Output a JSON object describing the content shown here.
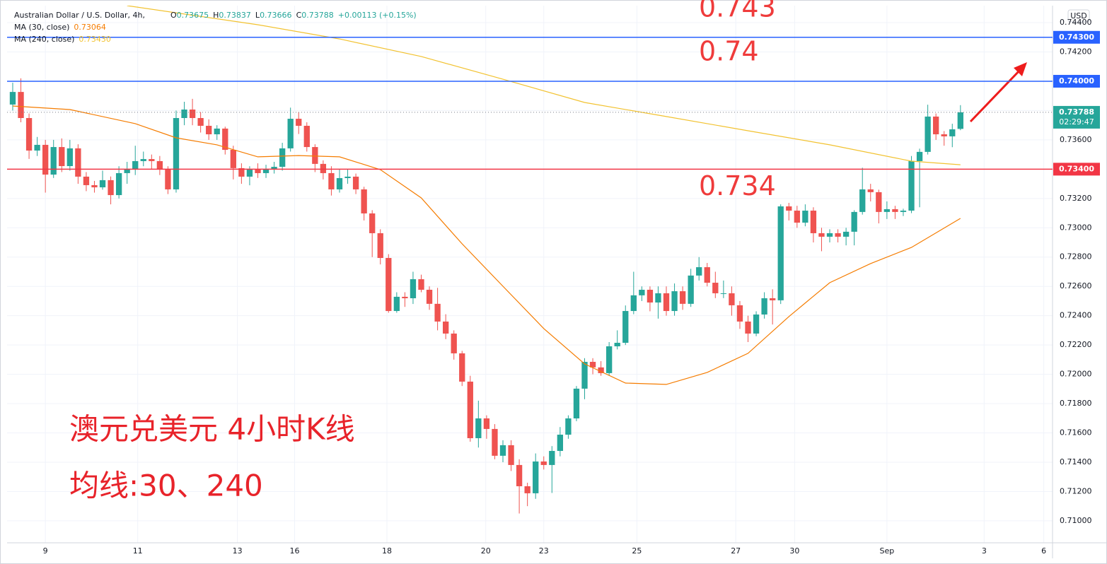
{
  "chart_data": {
    "type": "candlestick",
    "header": {
      "symbol": "Australian Dollar / U.S. Dollar, 4h,",
      "o": "O",
      "h": "H",
      "l": "L",
      "c": "C",
      "change": "+0.00113 (+0.15%)"
    },
    "currency": "USD",
    "up_color": "#26a69a",
    "down_color": "#ef5350",
    "xlim": [
      -0.69,
      127.27
    ],
    "ylim": [
      0.7085,
      0.74516
    ],
    "grid": true,
    "xticks": [
      {
        "value": 4,
        "label": "9"
      },
      {
        "value": 15.3,
        "label": "11"
      },
      {
        "value": 27.5,
        "label": "13"
      },
      {
        "value": 34.5,
        "label": "16"
      },
      {
        "value": 45.8,
        "label": "18"
      },
      {
        "value": 57.9,
        "label": "20"
      },
      {
        "value": 65,
        "label": "23"
      },
      {
        "value": 76.4,
        "label": "25"
      },
      {
        "value": 88.5,
        "label": "27"
      },
      {
        "value": 95.7,
        "label": "30"
      },
      {
        "value": 107,
        "label": "Sep"
      },
      {
        "value": 118.9,
        "label": "3"
      },
      {
        "value": 126.2,
        "label": "6"
      }
    ],
    "yticks": [
      {
        "value": 0.71,
        "label": "0.71000"
      },
      {
        "value": 0.712,
        "label": "0.71200"
      },
      {
        "value": 0.714,
        "label": "0.71400"
      },
      {
        "value": 0.716,
        "label": "0.71600"
      },
      {
        "value": 0.718,
        "label": "0.71800"
      },
      {
        "value": 0.72,
        "label": "0.72000"
      },
      {
        "value": 0.722,
        "label": "0.72200"
      },
      {
        "value": 0.724,
        "label": "0.72400"
      },
      {
        "value": 0.726,
        "label": "0.72600"
      },
      {
        "value": 0.728,
        "label": "0.72800"
      },
      {
        "value": 0.73,
        "label": "0.73000"
      },
      {
        "value": 0.732,
        "label": "0.73200"
      },
      {
        "value": 0.734,
        "label": "0.73400"
      },
      {
        "value": 0.736,
        "label": "0.73600"
      },
      {
        "value": 0.738,
        "label": "0.73800"
      },
      {
        "value": 0.74,
        "label": "0.74000"
      },
      {
        "value": 0.742,
        "label": "0.74200"
      },
      {
        "value": 0.744,
        "label": "0.74400"
      }
    ],
    "ohlc": [
      [
        0.73841,
        0.7399,
        0.738,
        0.73927
      ],
      [
        0.73927,
        0.7402,
        0.7372,
        0.73749
      ],
      [
        0.73749,
        0.7378,
        0.7347,
        0.73527
      ],
      [
        0.73527,
        0.7362,
        0.7349,
        0.73566
      ],
      [
        0.73566,
        0.736,
        0.7324,
        0.73363
      ],
      [
        0.73363,
        0.736,
        0.7334,
        0.73551
      ],
      [
        0.73551,
        0.7361,
        0.7338,
        0.73421
      ],
      [
        0.73421,
        0.736,
        0.7339,
        0.73542
      ],
      [
        0.73542,
        0.7357,
        0.733,
        0.73349
      ],
      [
        0.73349,
        0.7338,
        0.7325,
        0.73291
      ],
      [
        0.73291,
        0.7332,
        0.7324,
        0.73276
      ],
      [
        0.73276,
        0.7339,
        0.7326,
        0.73325
      ],
      [
        0.73325,
        0.7335,
        0.7316,
        0.73223
      ],
      [
        0.73223,
        0.7342,
        0.732,
        0.73373
      ],
      [
        0.73373,
        0.7345,
        0.733,
        0.73397
      ],
      [
        0.73397,
        0.7356,
        0.7336,
        0.73455
      ],
      [
        0.73455,
        0.7352,
        0.7342,
        0.73469
      ],
      [
        0.73469,
        0.735,
        0.734,
        0.73455
      ],
      [
        0.73455,
        0.7349,
        0.7336,
        0.73397
      ],
      [
        0.73397,
        0.7342,
        0.7323,
        0.73262
      ],
      [
        0.73262,
        0.738,
        0.7324,
        0.73749
      ],
      [
        0.73749,
        0.7386,
        0.737,
        0.73807
      ],
      [
        0.73807,
        0.7388,
        0.737,
        0.73749
      ],
      [
        0.73749,
        0.7379,
        0.7365,
        0.73696
      ],
      [
        0.73696,
        0.7374,
        0.736,
        0.73638
      ],
      [
        0.73638,
        0.737,
        0.736,
        0.73677
      ],
      [
        0.73677,
        0.7369,
        0.735,
        0.73532
      ],
      [
        0.73532,
        0.7356,
        0.7333,
        0.73407
      ],
      [
        0.73407,
        0.7344,
        0.733,
        0.73349
      ],
      [
        0.73349,
        0.7342,
        0.7329,
        0.73397
      ],
      [
        0.73397,
        0.7344,
        0.7334,
        0.73373
      ],
      [
        0.73373,
        0.7343,
        0.7334,
        0.73397
      ],
      [
        0.73397,
        0.7345,
        0.7337,
        0.73416
      ],
      [
        0.73416,
        0.7358,
        0.7339,
        0.73542
      ],
      [
        0.73542,
        0.7382,
        0.7352,
        0.73744
      ],
      [
        0.73744,
        0.7379,
        0.7364,
        0.73696
      ],
      [
        0.73696,
        0.7372,
        0.7352,
        0.73551
      ],
      [
        0.73551,
        0.7357,
        0.7338,
        0.73436
      ],
      [
        0.73436,
        0.7346,
        0.7333,
        0.73373
      ],
      [
        0.73373,
        0.7342,
        0.7322,
        0.73262
      ],
      [
        0.73262,
        0.734,
        0.7324,
        0.73339
      ],
      [
        0.73339,
        0.734,
        0.733,
        0.73349
      ],
      [
        0.73349,
        0.7337,
        0.7323,
        0.73262
      ],
      [
        0.73262,
        0.7328,
        0.7305,
        0.73098
      ],
      [
        0.73098,
        0.7312,
        0.728,
        0.72963
      ],
      [
        0.72963,
        0.7299,
        0.7275,
        0.72794
      ],
      [
        0.72794,
        0.7282,
        0.7242,
        0.72432
      ],
      [
        0.72432,
        0.7256,
        0.7242,
        0.72529
      ],
      [
        0.72529,
        0.7256,
        0.7246,
        0.72519
      ],
      [
        0.72519,
        0.727,
        0.7248,
        0.72649
      ],
      [
        0.72649,
        0.7268,
        0.7256,
        0.72577
      ],
      [
        0.72577,
        0.726,
        0.7244,
        0.72481
      ],
      [
        0.72481,
        0.7259,
        0.723,
        0.7236
      ],
      [
        0.7236,
        0.7241,
        0.7224,
        0.72278
      ],
      [
        0.72278,
        0.723,
        0.721,
        0.72143
      ],
      [
        0.72143,
        0.7216,
        0.7192,
        0.7195
      ],
      [
        0.7195,
        0.7199,
        0.7154,
        0.71564
      ],
      [
        0.71564,
        0.7182,
        0.715,
        0.71699
      ],
      [
        0.71699,
        0.7172,
        0.7156,
        0.71627
      ],
      [
        0.71627,
        0.7166,
        0.7142,
        0.71444
      ],
      [
        0.71444,
        0.7155,
        0.714,
        0.71516
      ],
      [
        0.71516,
        0.7155,
        0.7134,
        0.71381
      ],
      [
        0.71381,
        0.7142,
        0.7105,
        0.71236
      ],
      [
        0.71236,
        0.7126,
        0.711,
        0.71188
      ],
      [
        0.71188,
        0.7146,
        0.7115,
        0.71405
      ],
      [
        0.71405,
        0.7144,
        0.7135,
        0.71381
      ],
      [
        0.71381,
        0.7151,
        0.7119,
        0.71477
      ],
      [
        0.71477,
        0.7164,
        0.7144,
        0.71588
      ],
      [
        0.71588,
        0.7172,
        0.7156,
        0.71699
      ],
      [
        0.71699,
        0.7192,
        0.7168,
        0.71902
      ],
      [
        0.71902,
        0.7211,
        0.7183,
        0.72085
      ],
      [
        0.72085,
        0.7211,
        0.72,
        0.72047
      ],
      [
        0.72047,
        0.7209,
        0.7199,
        0.72008
      ],
      [
        0.72008,
        0.7222,
        0.7199,
        0.72191
      ],
      [
        0.72191,
        0.723,
        0.7217,
        0.72215
      ],
      [
        0.72215,
        0.7247,
        0.722,
        0.72432
      ],
      [
        0.72432,
        0.727,
        0.7241,
        0.72539
      ],
      [
        0.72539,
        0.726,
        0.725,
        0.72577
      ],
      [
        0.72577,
        0.726,
        0.7243,
        0.7249
      ],
      [
        0.7249,
        0.726,
        0.7238,
        0.72553
      ],
      [
        0.72553,
        0.726,
        0.724,
        0.72432
      ],
      [
        0.72432,
        0.7262,
        0.724,
        0.72567
      ],
      [
        0.72567,
        0.726,
        0.7244,
        0.72481
      ],
      [
        0.72481,
        0.7272,
        0.7246,
        0.72674
      ],
      [
        0.72674,
        0.728,
        0.7264,
        0.72731
      ],
      [
        0.72731,
        0.7276,
        0.726,
        0.72625
      ],
      [
        0.72625,
        0.727,
        0.7252,
        0.72553
      ],
      [
        0.72553,
        0.7264,
        0.7252,
        0.72553
      ],
      [
        0.72553,
        0.726,
        0.724,
        0.72471
      ],
      [
        0.72471,
        0.725,
        0.7231,
        0.7236
      ],
      [
        0.7236,
        0.724,
        0.7222,
        0.72278
      ],
      [
        0.72278,
        0.7243,
        0.7226,
        0.72408
      ],
      [
        0.72408,
        0.7256,
        0.7238,
        0.72519
      ],
      [
        0.72519,
        0.7258,
        0.7234,
        0.72505
      ],
      [
        0.72505,
        0.7316,
        0.7248,
        0.73146
      ],
      [
        0.73146,
        0.7317,
        0.7305,
        0.73117
      ],
      [
        0.73117,
        0.7315,
        0.73,
        0.73035
      ],
      [
        0.73035,
        0.7316,
        0.7301,
        0.73117
      ],
      [
        0.73117,
        0.7314,
        0.729,
        0.72963
      ],
      [
        0.72963,
        0.73,
        0.7284,
        0.72939
      ],
      [
        0.72939,
        0.7299,
        0.729,
        0.72963
      ],
      [
        0.72963,
        0.7299,
        0.729,
        0.72939
      ],
      [
        0.72939,
        0.73,
        0.7288,
        0.72973
      ],
      [
        0.72973,
        0.7312,
        0.7288,
        0.73108
      ],
      [
        0.73108,
        0.7341,
        0.7309,
        0.73262
      ],
      [
        0.73262,
        0.733,
        0.7318,
        0.73243
      ],
      [
        0.73243,
        0.7326,
        0.7303,
        0.73108
      ],
      [
        0.73108,
        0.7318,
        0.7306,
        0.73127
      ],
      [
        0.73127,
        0.7315,
        0.7306,
        0.73108
      ],
      [
        0.73108,
        0.7313,
        0.7308,
        0.73117
      ],
      [
        0.73117,
        0.7349,
        0.731,
        0.73455
      ],
      [
        0.73455,
        0.7354,
        0.7314,
        0.73518
      ],
      [
        0.73518,
        0.7384,
        0.735,
        0.73759
      ],
      [
        0.73759,
        0.7378,
        0.736,
        0.73638
      ],
      [
        0.73638,
        0.7366,
        0.7356,
        0.73624
      ],
      [
        0.73624,
        0.7371,
        0.7355,
        0.73672
      ],
      [
        0.73675,
        0.73837,
        0.73666,
        0.73788
      ]
    ],
    "series": [
      {
        "name": "MA (30, close)",
        "color": "#f57c00",
        "legend_value": "0.73064",
        "x": [
          0,
          7,
          15,
          20,
          25,
          30,
          35,
          40,
          45,
          50,
          55,
          60,
          65,
          70,
          75,
          80,
          85,
          90,
          95,
          100,
          105,
          110,
          116
        ],
        "values": [
          0.73831,
          0.73807,
          0.73711,
          0.73614,
          0.73566,
          0.73484,
          0.73493,
          0.73484,
          0.73397,
          0.73204,
          0.72891,
          0.72601,
          0.72312,
          0.72071,
          0.7194,
          0.71931,
          0.72013,
          0.72143,
          0.72394,
          0.72625,
          0.72756,
          0.72866,
          0.73064
        ]
      },
      {
        "name": "MA (240, close)",
        "color": "#f2c230",
        "legend_value": "0.73430",
        "x": [
          14,
          30,
          40,
          50,
          60,
          70,
          80,
          90,
          100,
          110,
          116
        ],
        "values": [
          0.74516,
          0.74386,
          0.74289,
          0.74169,
          0.74014,
          0.73855,
          0.73759,
          0.73662,
          0.73566,
          0.73455,
          0.7343
        ]
      }
    ],
    "hlines": [
      {
        "value": 0.743,
        "label": "0.74300",
        "color": "#2962ff",
        "annotation": "0.743"
      },
      {
        "value": 0.74,
        "label": "0.74000",
        "color": "#2962ff",
        "annotation": "0.74"
      },
      {
        "value": 0.734,
        "label": "0.73400",
        "color": "#f23645",
        "annotation": "0.734"
      }
    ],
    "current_price": {
      "value": 0.73788,
      "label": "0.73788",
      "countdown": "02:29:47"
    },
    "annotations": [
      "澳元兑美元 4小时K线",
      "均线:30、240"
    ]
  }
}
